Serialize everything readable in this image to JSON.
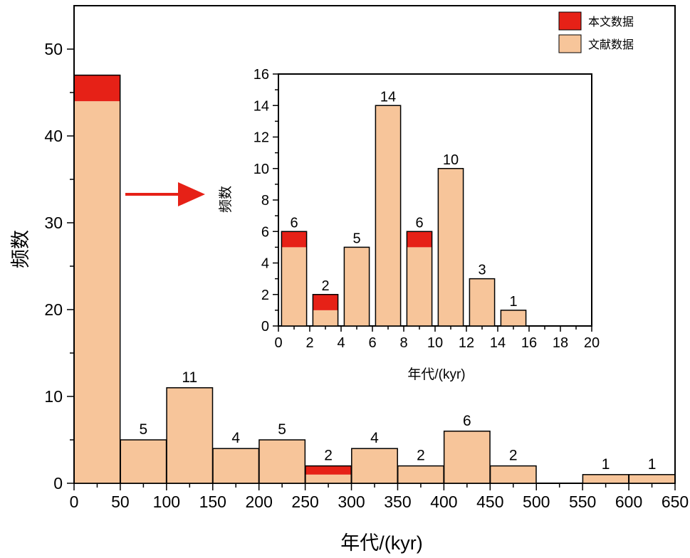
{
  "chart_data": [
    {
      "type": "bar",
      "stacked": true,
      "bin_width": 50,
      "bin_gap": 0.2,
      "xlim": [
        0,
        650
      ],
      "ylim": [
        0,
        55
      ],
      "xticks": [
        0,
        50,
        100,
        150,
        200,
        250,
        300,
        350,
        400,
        450,
        500,
        550,
        600,
        650
      ],
      "yticks": [
        0,
        10,
        20,
        30,
        40,
        50
      ],
      "xlabel": "年代/(kyr)",
      "ylabel": "频数",
      "bins": [
        {
          "x0": 0,
          "x1": 50,
          "total": 47,
          "this_study": 3,
          "literature": 44,
          "label": ""
        },
        {
          "x0": 50,
          "x1": 100,
          "total": 5,
          "this_study": 0,
          "literature": 5,
          "label": "5"
        },
        {
          "x0": 100,
          "x1": 150,
          "total": 11,
          "this_study": 0,
          "literature": 11,
          "label": "11"
        },
        {
          "x0": 150,
          "x1": 200,
          "total": 4,
          "this_study": 0,
          "literature": 4,
          "label": "4"
        },
        {
          "x0": 200,
          "x1": 250,
          "total": 5,
          "this_study": 0,
          "literature": 5,
          "label": "5"
        },
        {
          "x0": 250,
          "x1": 300,
          "total": 2,
          "this_study": 1,
          "literature": 1,
          "label": "2"
        },
        {
          "x0": 300,
          "x1": 350,
          "total": 4,
          "this_study": 0,
          "literature": 4,
          "label": "4"
        },
        {
          "x0": 350,
          "x1": 400,
          "total": 2,
          "this_study": 0,
          "literature": 2,
          "label": "2"
        },
        {
          "x0": 400,
          "x1": 450,
          "total": 6,
          "this_study": 0,
          "literature": 6,
          "label": "6"
        },
        {
          "x0": 450,
          "x1": 500,
          "total": 2,
          "this_study": 0,
          "literature": 2,
          "label": "2"
        },
        {
          "x0": 550,
          "x1": 600,
          "total": 1,
          "this_study": 0,
          "literature": 1,
          "label": "1"
        },
        {
          "x0": 600,
          "x1": 650,
          "total": 1,
          "this_study": 0,
          "literature": 1,
          "label": "1"
        }
      ]
    },
    {
      "type": "bar",
      "stacked": true,
      "inset": true,
      "bin_width": 2,
      "bin_gap": 0.2,
      "xlim": [
        0,
        20
      ],
      "ylim": [
        0,
        16
      ],
      "xticks": [
        0,
        2,
        4,
        6,
        8,
        10,
        12,
        14,
        16,
        18,
        20
      ],
      "yticks": [
        0,
        2,
        4,
        6,
        8,
        10,
        12,
        14,
        16
      ],
      "xlabel": "年代/(kyr)",
      "ylabel": "频数",
      "bins": [
        {
          "x0": 0,
          "x1": 2,
          "total": 6,
          "this_study": 1,
          "literature": 5,
          "label": "6"
        },
        {
          "x0": 2,
          "x1": 4,
          "total": 2,
          "this_study": 1,
          "literature": 1,
          "label": "2"
        },
        {
          "x0": 4,
          "x1": 6,
          "total": 5,
          "this_study": 0,
          "literature": 5,
          "label": "5"
        },
        {
          "x0": 6,
          "x1": 8,
          "total": 14,
          "this_study": 0,
          "literature": 14,
          "label": "14"
        },
        {
          "x0": 8,
          "x1": 10,
          "total": 6,
          "this_study": 1,
          "literature": 5,
          "label": "6"
        },
        {
          "x0": 10,
          "x1": 12,
          "total": 10,
          "this_study": 0,
          "literature": 10,
          "label": "10"
        },
        {
          "x0": 12,
          "x1": 14,
          "total": 3,
          "this_study": 0,
          "literature": 3,
          "label": "3"
        },
        {
          "x0": 14,
          "x1": 16,
          "total": 1,
          "this_study": 0,
          "literature": 1,
          "label": "1"
        }
      ]
    }
  ],
  "legend": {
    "placement": "top-right",
    "items": [
      {
        "label": "本文数据",
        "color": "#e62117"
      },
      {
        "label": "文献数据",
        "color": "#f7c59a"
      }
    ]
  },
  "colors": {
    "this_study": "#e62117",
    "literature": "#f7c59a",
    "arrow": "#e62117",
    "axis": "#000000"
  }
}
